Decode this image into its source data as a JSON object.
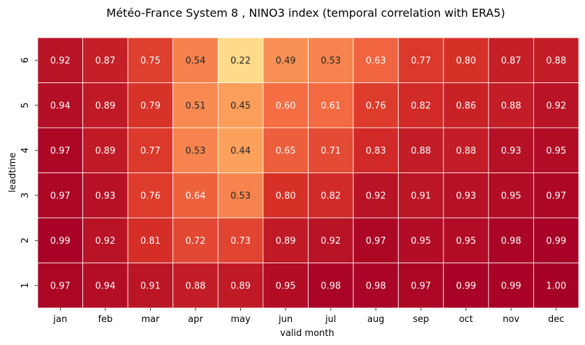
{
  "chart_data": {
    "type": "heatmap",
    "title": "Météo-France System 8 , NINO3 index (temporal correlation with ERA5)",
    "xlabel": "valid month",
    "ylabel": "leadtime",
    "x_categories": [
      "jan",
      "feb",
      "mar",
      "apr",
      "may",
      "jun",
      "jul",
      "aug",
      "sep",
      "oct",
      "nov",
      "dec"
    ],
    "y_categories": [
      "6",
      "5",
      "4",
      "3",
      "2",
      "1"
    ],
    "values": [
      [
        0.92,
        0.87,
        0.75,
        0.54,
        0.22,
        0.49,
        0.53,
        0.63,
        0.77,
        0.8,
        0.87,
        0.88
      ],
      [
        0.94,
        0.89,
        0.79,
        0.51,
        0.45,
        0.6,
        0.61,
        0.76,
        0.82,
        0.86,
        0.88,
        0.92
      ],
      [
        0.97,
        0.89,
        0.77,
        0.53,
        0.44,
        0.65,
        0.71,
        0.83,
        0.88,
        0.88,
        0.93,
        0.95
      ],
      [
        0.97,
        0.93,
        0.76,
        0.64,
        0.53,
        0.8,
        0.82,
        0.92,
        0.91,
        0.93,
        0.95,
        0.97
      ],
      [
        0.99,
        0.92,
        0.81,
        0.72,
        0.73,
        0.89,
        0.92,
        0.97,
        0.95,
        0.95,
        0.98,
        0.99
      ],
      [
        0.97,
        0.94,
        0.91,
        0.88,
        0.89,
        0.95,
        0.98,
        0.98,
        0.97,
        0.99,
        0.99,
        1.0
      ]
    ],
    "value_format": "0.00",
    "colormap": "RdYlBu_r",
    "vmin": -1,
    "vmax": 1,
    "colorbar": false,
    "grid": false
  }
}
